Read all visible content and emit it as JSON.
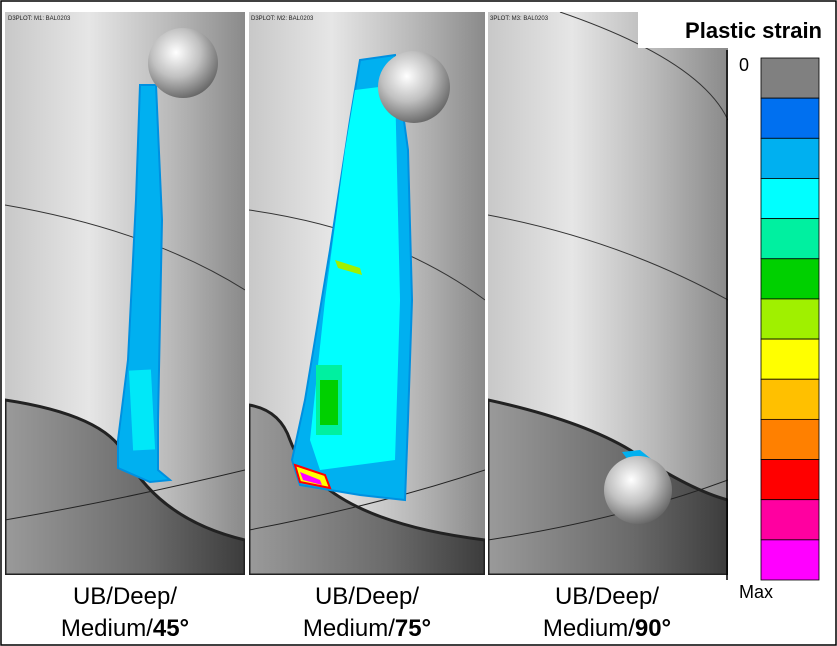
{
  "panels": [
    {
      "header": "D3PLOT: M1: BAL0203",
      "caption": {
        "line1": "UB/Deep/",
        "line2": "Medium/",
        "angle": "45°"
      }
    },
    {
      "header": "D3PLOT: M2: BAL0203",
      "caption": {
        "line1": "UB/Deep/",
        "line2": "Medium/",
        "angle": "75°"
      }
    },
    {
      "header": "3PLOT: M3: BAL0203",
      "caption": {
        "line1": "UB/Deep/",
        "line2": "Medium/",
        "angle": "90°"
      }
    }
  ],
  "legend": {
    "title": "Plastic strain",
    "min_label": "0",
    "max_label": "Max",
    "colors": [
      "#808080",
      "#0070f0",
      "#00b0f0",
      "#00ffff",
      "#00f0a0",
      "#00d000",
      "#a0f000",
      "#ffff00",
      "#ffc000",
      "#ff8000",
      "#ff0000",
      "#ff00a0",
      "#ff00ff"
    ]
  }
}
